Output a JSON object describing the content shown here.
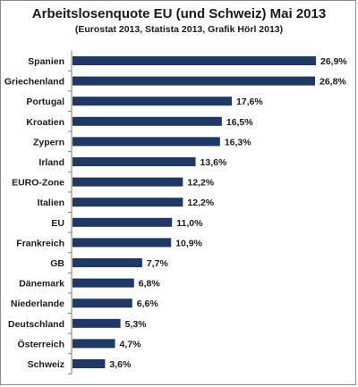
{
  "chart_data": {
    "type": "bar",
    "orientation": "horizontal",
    "title": "Arbeitslosenquote EU (und Schweiz) Mai 2013",
    "subtitle": "(Eurostat 2013, Statista 2013, Grafik Hörl 2013)",
    "categories": [
      "Spanien",
      "Griechenland",
      "Portugal",
      "Kroatien",
      "Zypern",
      "Irland",
      "EURO-Zone",
      "Italien",
      "EU",
      "Frankreich",
      "GB",
      "Dänemark",
      "Niederlande",
      "Deutschland",
      "Österreich",
      "Schweiz"
    ],
    "values": [
      26.9,
      26.8,
      17.6,
      16.5,
      16.3,
      13.6,
      12.2,
      12.2,
      11.0,
      10.9,
      7.7,
      6.8,
      6.6,
      5.3,
      4.7,
      3.6
    ],
    "value_labels": [
      "26,9%",
      "26,8%",
      "17,6%",
      "16,5%",
      "16,3%",
      "13,6%",
      "12,2%",
      "12,2%",
      "11,0%",
      "10,9%",
      "7,7%",
      "6,8%",
      "6,6%",
      "5,3%",
      "4,7%",
      "3,6%"
    ],
    "xlim": [
      0,
      26.9
    ],
    "grid": false,
    "legend": "none",
    "bar_color": "#1f3864",
    "axis_color": "#7f7f7f"
  }
}
